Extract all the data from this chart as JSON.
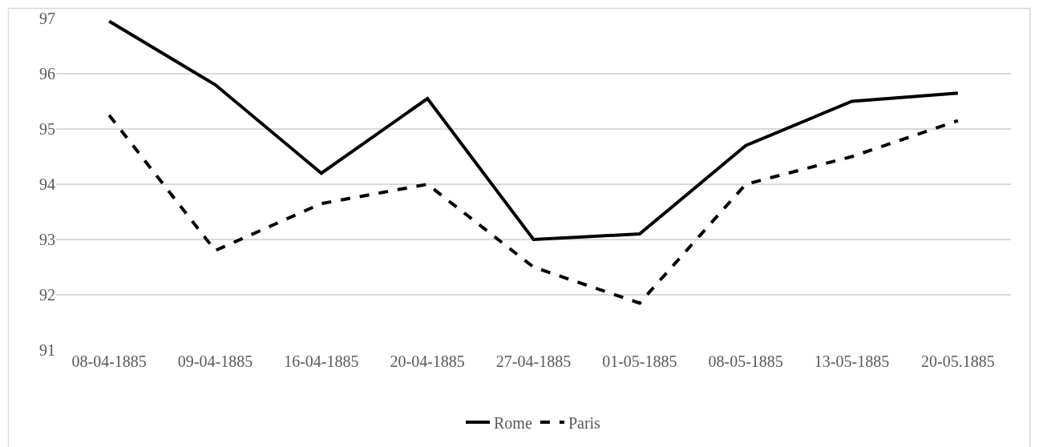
{
  "chart_data": {
    "type": "line",
    "categories": [
      "08-04-1885",
      "09-04-1885",
      "16-04-1885",
      "20-04-1885",
      "27-04-1885",
      "01-05-1885",
      "08-05-1885",
      "13-05-1885",
      "20-05.1885"
    ],
    "series": [
      {
        "name": "Rome",
        "color": "#000000",
        "line_style": "solid",
        "values": [
          96.95,
          95.8,
          94.2,
          95.55,
          93.0,
          93.1,
          94.7,
          95.5,
          95.65
        ]
      },
      {
        "name": "Paris",
        "color": "#000000",
        "line_style": "dashed",
        "values": [
          95.25,
          92.8,
          93.65,
          94.0,
          92.5,
          91.85,
          94.0,
          94.5,
          95.15
        ]
      }
    ],
    "ylim": [
      91,
      97
    ],
    "yticks": [
      91,
      92,
      93,
      94,
      95,
      96,
      97
    ],
    "grid": "y",
    "legend": "bottom",
    "marker": "none"
  }
}
